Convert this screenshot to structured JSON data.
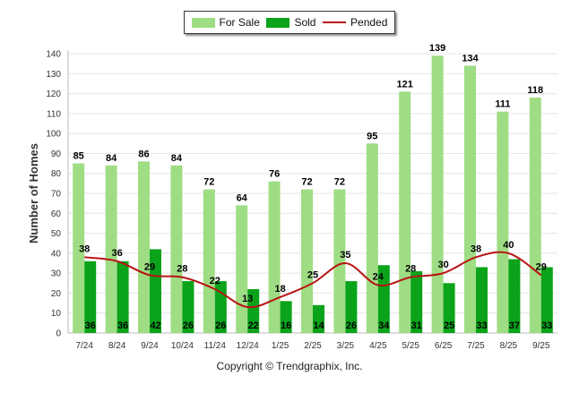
{
  "chart_data": {
    "type": "bar",
    "ylabel": "Number of Homes",
    "ylim": [
      0,
      140
    ],
    "yticks": [
      0,
      10,
      20,
      30,
      40,
      50,
      60,
      70,
      80,
      90,
      100,
      110,
      120,
      130,
      140
    ],
    "grid": true,
    "legend_position": "top-center",
    "categories": [
      "7/24",
      "8/24",
      "9/24",
      "10/24",
      "11/24",
      "12/24",
      "1/25",
      "2/25",
      "3/25",
      "4/25",
      "5/25",
      "6/25",
      "7/25",
      "8/25",
      "9/25"
    ],
    "series": [
      {
        "name": "For Sale",
        "kind": "bar",
        "color": "#9fdd84",
        "values": [
          85,
          84,
          86,
          84,
          72,
          64,
          76,
          72,
          72,
          95,
          121,
          139,
          134,
          111,
          118
        ]
      },
      {
        "name": "Sold",
        "kind": "bar",
        "color": "#0aa31a",
        "values": [
          36,
          36,
          42,
          26,
          26,
          22,
          16,
          14,
          26,
          34,
          31,
          25,
          33,
          37,
          33
        ]
      },
      {
        "name": "Pended",
        "kind": "line",
        "color": "#b81414",
        "values": [
          38,
          36,
          29,
          28,
          22,
          13,
          18,
          25,
          35,
          24,
          28,
          30,
          38,
          40,
          29
        ]
      }
    ]
  },
  "footer": {
    "copyright": "Copyright © Trendgraphix, Inc."
  }
}
